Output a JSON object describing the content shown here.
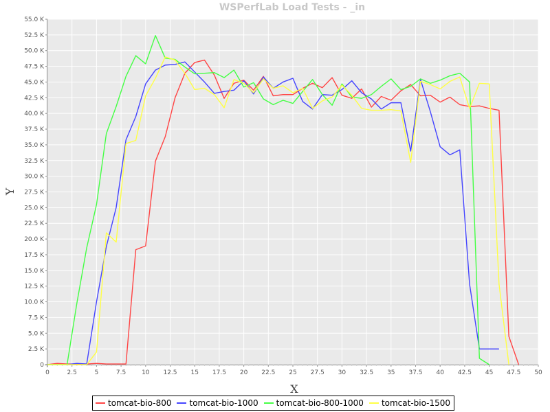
{
  "chart_data": {
    "type": "line",
    "title": "WSPerfLab Load Tests - _in",
    "xlabel": "X",
    "ylabel": "Y",
    "xlim": [
      0,
      50
    ],
    "ylim": [
      0,
      55000
    ],
    "x_ticks": [
      0,
      2.5,
      5,
      7.5,
      10,
      12.5,
      15,
      17.5,
      20,
      22.5,
      25,
      27.5,
      30,
      32.5,
      35,
      37.5,
      40,
      42.5,
      45,
      47.5,
      50
    ],
    "x_tick_labels": [
      "0",
      "2.5",
      "5",
      "7.5",
      "10",
      "12.5",
      "15",
      "17.5",
      "20",
      "22.5",
      "25",
      "27.5",
      "30",
      "32.5",
      "35",
      "37.5",
      "40",
      "42.5",
      "45",
      "47.5",
      "50"
    ],
    "y_ticks": [
      0,
      2500,
      5000,
      7500,
      10000,
      12500,
      15000,
      17500,
      20000,
      22500,
      25000,
      27500,
      30000,
      32500,
      35000,
      37500,
      40000,
      42500,
      45000,
      47500,
      50000,
      52500,
      55000
    ],
    "y_tick_labels": [
      "0",
      "2.5 K",
      "5.0 K",
      "7.5 K",
      "10.0 K",
      "12.5 K",
      "15.0 K",
      "17.5 K",
      "20.0 K",
      "22.5 K",
      "25.0 K",
      "27.5 K",
      "30.0 K",
      "32.5 K",
      "35.0 K",
      "37.5 K",
      "40.0 K",
      "42.5 K",
      "45.0 K",
      "47.5 K",
      "50.0 K",
      "52.5 K",
      "55.0 K"
    ],
    "grid": true,
    "legend_position": "bottom",
    "series": [
      {
        "name": "tomcat-bio-800",
        "color": "#ff4444",
        "x": [
          0,
          1,
          2,
          3,
          4,
          5,
          6,
          7,
          8,
          9,
          10,
          11,
          12,
          13,
          14,
          15,
          16,
          17,
          18,
          19,
          20,
          21,
          22,
          23,
          24,
          25,
          26,
          27,
          28,
          29,
          30,
          31,
          32,
          33,
          34,
          35,
          36,
          37,
          38,
          39,
          40,
          41,
          42,
          43,
          44,
          45,
          46,
          47,
          48
        ],
        "values": [
          0,
          200,
          100,
          100,
          100,
          200,
          100,
          100,
          100,
          18300,
          18900,
          32400,
          36300,
          42500,
          46400,
          48100,
          48500,
          46100,
          42400,
          44800,
          45300,
          43700,
          45900,
          42800,
          43000,
          43000,
          44000,
          44800,
          44100,
          45700,
          42900,
          42400,
          43900,
          41000,
          42700,
          42100,
          43600,
          44600,
          42800,
          42900,
          41800,
          42600,
          41400,
          41100,
          41200,
          40800,
          40500,
          4500,
          0
        ]
      },
      {
        "name": "tomcat-bio-1000",
        "color": "#4444ff",
        "x": [
          0,
          1,
          2,
          3,
          4,
          5,
          6,
          7,
          8,
          9,
          10,
          11,
          12,
          13,
          14,
          15,
          16,
          17,
          18,
          19,
          20,
          21,
          22,
          23,
          24,
          25,
          26,
          27,
          28,
          29,
          30,
          31,
          32,
          33,
          34,
          35,
          36,
          37,
          38,
          39,
          40,
          41,
          42,
          43,
          44,
          45,
          46
        ],
        "values": [
          0,
          0,
          0,
          200,
          100,
          10000,
          18800,
          25000,
          35800,
          39500,
          44700,
          46900,
          47700,
          47800,
          48200,
          46600,
          45000,
          43200,
          43500,
          43700,
          45200,
          43100,
          45800,
          44000,
          45000,
          45600,
          41900,
          40700,
          43000,
          42900,
          43800,
          45200,
          43300,
          42300,
          40700,
          41700,
          41700,
          34000,
          45400,
          40300,
          34700,
          33400,
          34200,
          12800,
          2500,
          2500,
          2500
        ]
      },
      {
        "name": "tomcat-bio-800-1000",
        "color": "#44ff44",
        "x": [
          0,
          1,
          2,
          3,
          4,
          5,
          6,
          7,
          8,
          9,
          10,
          11,
          12,
          13,
          14,
          15,
          16,
          17,
          18,
          19,
          20,
          21,
          22,
          23,
          24,
          25,
          26,
          27,
          28,
          29,
          30,
          31,
          32,
          33,
          34,
          35,
          36,
          37,
          38,
          39,
          40,
          41,
          42,
          43,
          44,
          45
        ],
        "values": [
          0,
          0,
          0,
          9800,
          18600,
          25500,
          36800,
          41100,
          45900,
          49200,
          47900,
          52400,
          48800,
          48600,
          47400,
          46300,
          46400,
          46500,
          45700,
          46900,
          44200,
          44900,
          42300,
          41400,
          42100,
          41600,
          43500,
          45400,
          43000,
          41300,
          44700,
          42600,
          42400,
          43000,
          44300,
          45500,
          43800,
          44300,
          45500,
          44800,
          45300,
          46000,
          46400,
          45000,
          1000,
          0
        ]
      },
      {
        "name": "tomcat-bio-1500",
        "color": "#ffff44",
        "x": [
          0,
          1,
          2,
          3,
          4,
          5,
          6,
          7,
          8,
          9,
          10,
          11,
          12,
          13,
          14,
          15,
          16,
          17,
          18,
          19,
          20,
          21,
          22,
          23,
          24,
          25,
          26,
          27,
          28,
          29,
          30,
          31,
          32,
          33,
          34,
          35,
          36,
          37,
          38,
          39,
          40,
          41,
          42,
          43,
          44,
          45,
          46,
          47
        ],
        "values": [
          0,
          0,
          0,
          0,
          0,
          2000,
          21000,
          19500,
          35200,
          35700,
          42800,
          45600,
          49000,
          48500,
          46400,
          43800,
          44000,
          43000,
          40900,
          45400,
          44800,
          43300,
          45500,
          44000,
          44400,
          43300,
          44000,
          40800,
          42000,
          42600,
          44500,
          42900,
          40800,
          40500,
          40500,
          40600,
          40400,
          32200,
          45100,
          44600,
          43900,
          45100,
          45800,
          40800,
          44800,
          44700,
          12800,
          0
        ]
      }
    ]
  }
}
